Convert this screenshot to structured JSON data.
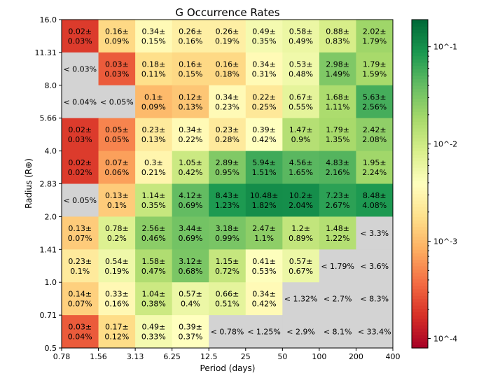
{
  "chart_data": {
    "type": "heatmap",
    "title": "G Occurrence Rates",
    "xlabel": "Period (days)",
    "ylabel": "Radius (R⊕)",
    "x_tick_labels": [
      "0.78",
      "1.56",
      "3.13",
      "6.25",
      "12.5",
      "25",
      "50",
      "100",
      "200",
      "400"
    ],
    "y_tick_labels": [
      "0.5",
      "0.71",
      "1.0",
      "1.41",
      "2.0",
      "2.83",
      "4.0",
      "5.66",
      "8.0",
      "11.31",
      "16.0"
    ],
    "colorbar": {
      "colormap": "RdYlGn",
      "scale": "log",
      "range": [
        8e-05,
        0.19
      ],
      "tick_labels": [
        "10^-4",
        "10^-3",
        "10^-2",
        "10^-1"
      ],
      "tick_values": [
        0.0001,
        0.001,
        0.01,
        0.1
      ]
    },
    "missing_color": "#d3d3d3",
    "rows_top_to_bottom": [
      [
        [
          "0.02",
          "0.03"
        ],
        [
          "0.16",
          "0.09"
        ],
        [
          "0.34",
          "0.15"
        ],
        [
          "0.26",
          "0.16"
        ],
        [
          "0.26",
          "0.19"
        ],
        [
          "0.49",
          "0.35"
        ],
        [
          "0.58",
          "0.49"
        ],
        [
          "0.88",
          "0.83"
        ],
        [
          "2.02",
          "1.79"
        ]
      ],
      [
        [
          "< 0.03%"
        ],
        [
          "0.03",
          "0.03"
        ],
        [
          "0.18",
          "0.11"
        ],
        [
          "0.16",
          "0.15"
        ],
        [
          "0.16",
          "0.18"
        ],
        [
          "0.34",
          "0.31"
        ],
        [
          "0.53",
          "0.48"
        ],
        [
          "2.98",
          "1.49"
        ],
        [
          "1.79",
          "1.59"
        ]
      ],
      [
        [
          "< 0.04%"
        ],
        [
          "< 0.05%"
        ],
        [
          "0.1",
          "0.09"
        ],
        [
          "0.12",
          "0.13"
        ],
        [
          "0.34",
          "0.23"
        ],
        [
          "0.22",
          "0.25"
        ],
        [
          "0.67",
          "0.55"
        ],
        [
          "1.68",
          "1.11"
        ],
        [
          "5.63",
          "2.56"
        ]
      ],
      [
        [
          "0.02",
          "0.03"
        ],
        [
          "0.05",
          "0.05"
        ],
        [
          "0.23",
          "0.13"
        ],
        [
          "0.34",
          "0.22"
        ],
        [
          "0.23",
          "0.28"
        ],
        [
          "0.39",
          "0.42"
        ],
        [
          "1.47",
          "0.9"
        ],
        [
          "1.79",
          "1.35"
        ],
        [
          "2.42",
          "2.08"
        ]
      ],
      [
        [
          "0.02",
          "0.02"
        ],
        [
          "0.07",
          "0.06"
        ],
        [
          "0.3",
          "0.21"
        ],
        [
          "1.05",
          "0.42"
        ],
        [
          "2.89",
          "0.95"
        ],
        [
          "5.94",
          "1.51"
        ],
        [
          "4.56",
          "1.65"
        ],
        [
          "4.83",
          "2.16"
        ],
        [
          "1.95",
          "2.24"
        ]
      ],
      [
        [
          "< 0.05%"
        ],
        [
          "0.13",
          "0.1"
        ],
        [
          "1.14",
          "0.35"
        ],
        [
          "4.12",
          "0.69"
        ],
        [
          "8.43",
          "1.23"
        ],
        [
          "10.48",
          "1.82"
        ],
        [
          "10.2",
          "2.04"
        ],
        [
          "7.23",
          "2.67"
        ],
        [
          "8.48",
          "4.08"
        ]
      ],
      [
        [
          "0.13",
          "0.07"
        ],
        [
          "0.78",
          "0.2"
        ],
        [
          "2.56",
          "0.46"
        ],
        [
          "3.44",
          "0.69"
        ],
        [
          "3.18",
          "0.99"
        ],
        [
          "2.47",
          "1.1"
        ],
        [
          "1.2",
          "0.89"
        ],
        [
          "1.48",
          "1.22"
        ],
        [
          "< 3.3%"
        ]
      ],
      [
        [
          "0.23",
          "0.1"
        ],
        [
          "0.54",
          "0.19"
        ],
        [
          "1.58",
          "0.47"
        ],
        [
          "3.12",
          "0.68"
        ],
        [
          "1.15",
          "0.72"
        ],
        [
          "0.41",
          "0.53"
        ],
        [
          "0.57",
          "0.67"
        ],
        [
          "< 1.79%"
        ],
        [
          "< 3.6%"
        ]
      ],
      [
        [
          "0.14",
          "0.07"
        ],
        [
          "0.33",
          "0.16"
        ],
        [
          "1.04",
          "0.38"
        ],
        [
          "0.57",
          "0.4"
        ],
        [
          "0.66",
          "0.51"
        ],
        [
          "0.34",
          "0.42"
        ],
        [
          "< 1.32%"
        ],
        [
          "< 2.7%"
        ],
        [
          "< 8.3%"
        ]
      ],
      [
        [
          "0.03",
          "0.04"
        ],
        [
          "0.17",
          "0.12"
        ],
        [
          "0.49",
          "0.33"
        ],
        [
          "0.39",
          "0.37"
        ],
        [
          "< 0.78%"
        ],
        [
          "< 1.25%"
        ],
        [
          "< 2.9%"
        ],
        [
          "< 8.1%"
        ],
        [
          "< 33.4%"
        ]
      ]
    ]
  }
}
